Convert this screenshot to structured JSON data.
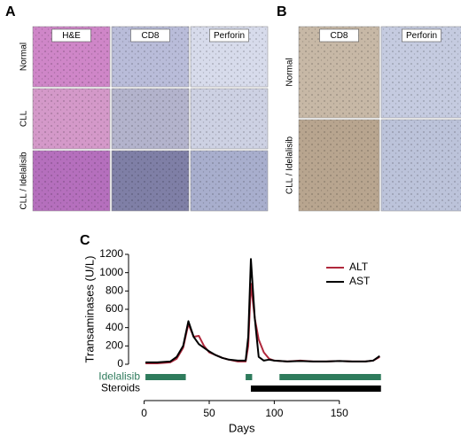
{
  "panel_a": {
    "letter": "A",
    "columns": [
      "H&E",
      "CD8",
      "Perforin"
    ],
    "rows": [
      "Normal",
      "CLL",
      "CLL / Idelalisib"
    ]
  },
  "panel_b": {
    "letter": "B",
    "columns": [
      "CD8",
      "Perforin"
    ],
    "rows": [
      "Normal",
      "CLL / Idelalisib"
    ]
  },
  "chart_data": {
    "type": "line",
    "panel_letter": "C",
    "x_label": "Days",
    "y_label": "Transaminases (U/L)",
    "x": [
      1,
      10,
      20,
      25,
      30,
      34,
      38,
      42,
      46,
      50,
      55,
      60,
      65,
      72,
      78,
      80,
      82,
      85,
      88,
      92,
      96,
      100,
      110,
      120,
      130,
      140,
      150,
      160,
      170,
      176,
      181
    ],
    "series": [
      {
        "name": "ALT",
        "color": "#b0283c",
        "values": [
          10,
          10,
          20,
          60,
          180,
          440,
          300,
          310,
          200,
          130,
          100,
          70,
          50,
          30,
          30,
          200,
          880,
          500,
          270,
          130,
          60,
          40,
          30,
          40,
          30,
          30,
          35,
          30,
          30,
          40,
          80
        ]
      },
      {
        "name": "AST",
        "color": "#000000",
        "values": [
          20,
          20,
          30,
          80,
          200,
          470,
          300,
          220,
          180,
          140,
          100,
          70,
          50,
          40,
          40,
          300,
          1150,
          500,
          80,
          40,
          50,
          40,
          30,
          35,
          30,
          30,
          35,
          30,
          30,
          40,
          90
        ]
      }
    ],
    "xlim": [
      -12,
      189
    ],
    "xticks": [
      0,
      50,
      100,
      150
    ],
    "ylim": [
      0,
      1200
    ],
    "yticks": [
      0,
      200,
      400,
      600,
      800,
      1000,
      1200
    ],
    "legend": "upper right",
    "treatments": [
      {
        "name": "Idelalisib",
        "color": "#2e7b5c",
        "ranges": [
          [
            1,
            32
          ],
          [
            78,
            83
          ],
          [
            104,
            182
          ]
        ]
      },
      {
        "name": "Steroids",
        "color": "#000000",
        "ranges": [
          [
            82,
            182
          ]
        ]
      }
    ]
  }
}
